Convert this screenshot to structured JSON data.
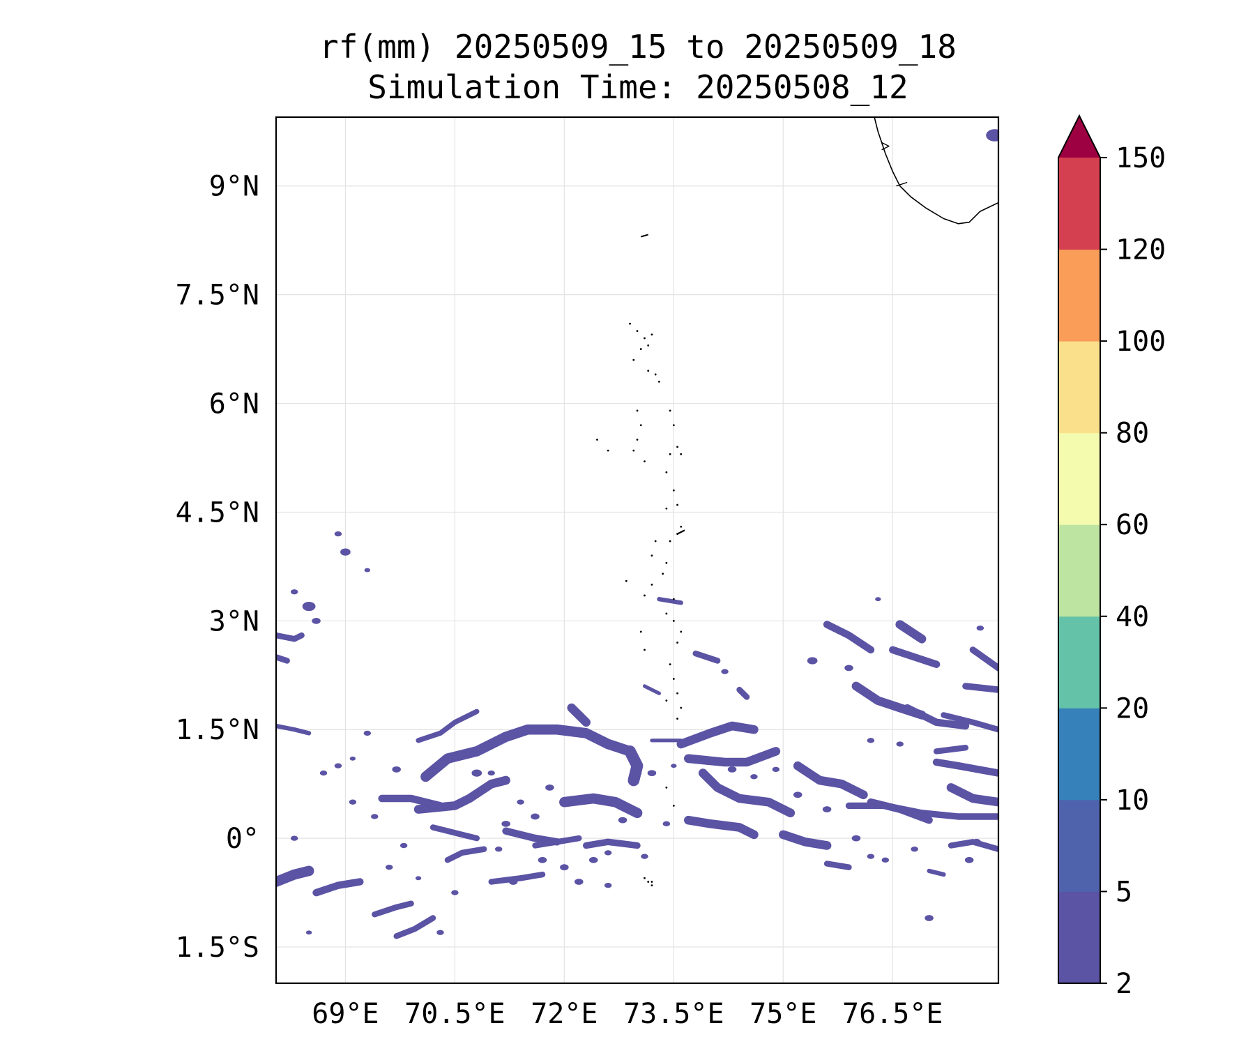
{
  "title": {
    "line1": "rf(mm) 20250509_15 to 20250509_18",
    "line2": "Simulation Time: 20250508_12"
  },
  "map": {
    "lon_range": [
      68.05,
      77.95
    ],
    "lat_range": [
      -2.0,
      9.95
    ],
    "lat_ticks": [
      {
        "value": 9,
        "label": "9°N"
      },
      {
        "value": 7.5,
        "label": "7.5°N"
      },
      {
        "value": 6,
        "label": "6°N"
      },
      {
        "value": 4.5,
        "label": "4.5°N"
      },
      {
        "value": 3,
        "label": "3°N"
      },
      {
        "value": 1.5,
        "label": "1.5°N"
      },
      {
        "value": 0,
        "label": "0°"
      },
      {
        "value": -1.5,
        "label": "1.5°S"
      }
    ],
    "lon_ticks": [
      {
        "value": 69,
        "label": "69°E"
      },
      {
        "value": 70.5,
        "label": "70.5°E"
      },
      {
        "value": 72,
        "label": "72°E"
      },
      {
        "value": 73.5,
        "label": "73.5°E"
      },
      {
        "value": 75,
        "label": "75°E"
      },
      {
        "value": 76.5,
        "label": "76.5°E"
      }
    ],
    "gridlines": true,
    "rain_color": "#5b53a4",
    "rain_edge_color": "#4f62ac",
    "coastline_color": "#000000"
  },
  "colorbar": {
    "levels": [
      "2",
      "5",
      "10",
      "20",
      "40",
      "60",
      "80",
      "100",
      "120",
      "150"
    ],
    "colors": [
      "#5b53a4",
      "#4f62ac",
      "#3781ba",
      "#64c2a8",
      "#bde4a0",
      "#f4fbae",
      "#fbe08c",
      "#f99d59",
      "#d4404f"
    ],
    "extend_color": "#9e0142",
    "extend": "max"
  }
}
